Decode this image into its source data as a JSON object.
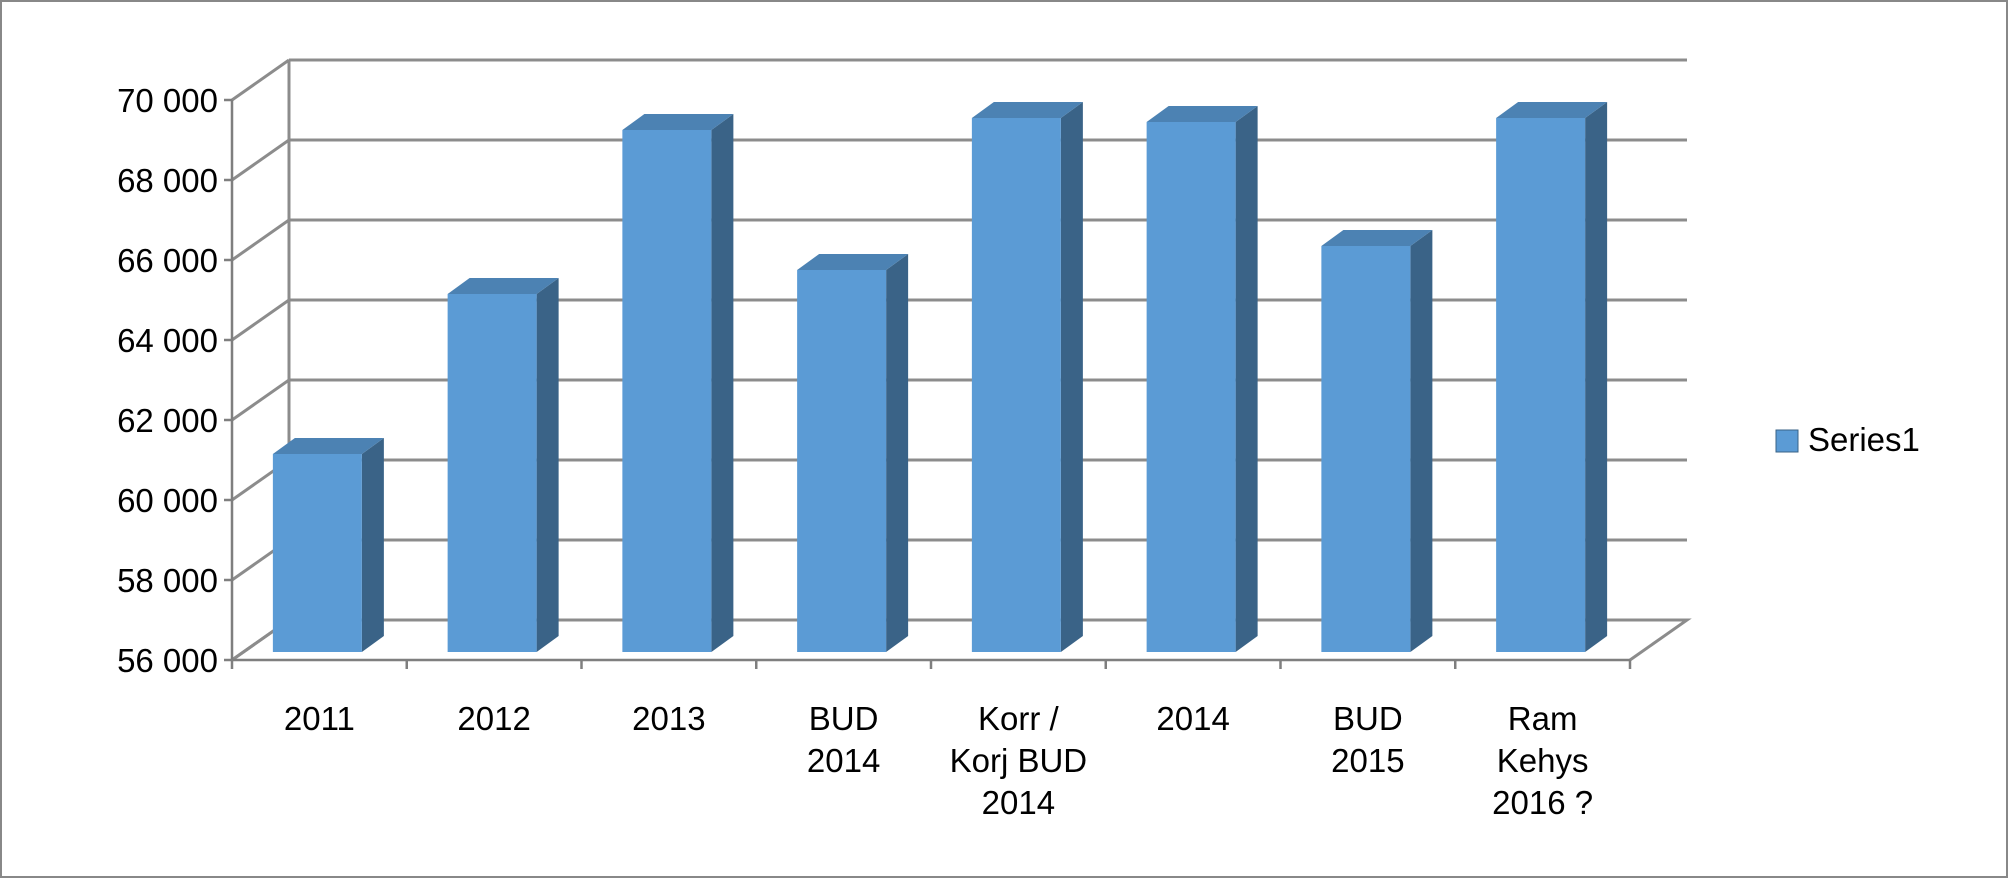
{
  "chart_data": {
    "type": "bar",
    "style": "3d-clustered-column",
    "title": "",
    "xlabel": "",
    "ylabel": "",
    "ylim": [
      56000,
      70000
    ],
    "ytick_step": 2000,
    "yticks": [
      "56 000",
      "58 000",
      "60 000",
      "62 000",
      "64 000",
      "66 000",
      "68 000",
      "70 000"
    ],
    "categories": [
      [
        "2011"
      ],
      [
        "2012"
      ],
      [
        "2013"
      ],
      [
        "BUD",
        "2014"
      ],
      [
        "Korr /",
        "Korj BUD",
        "2014"
      ],
      [
        "2014"
      ],
      [
        "BUD",
        "2015"
      ],
      [
        "Ram",
        "Kehys",
        "2016 ?"
      ]
    ],
    "series": [
      {
        "name": "Series1",
        "values": [
          61000,
          65000,
          69100,
          65600,
          69400,
          69300,
          66200,
          69400
        ]
      }
    ],
    "grid": true,
    "legend_position": "right",
    "colors": {
      "bar_front": "#5b9bd5",
      "bar_side": "#3a6387",
      "bar_top": "#4c82b3",
      "grid": "#8c8c8c",
      "axis": "#7f7f7f"
    }
  }
}
